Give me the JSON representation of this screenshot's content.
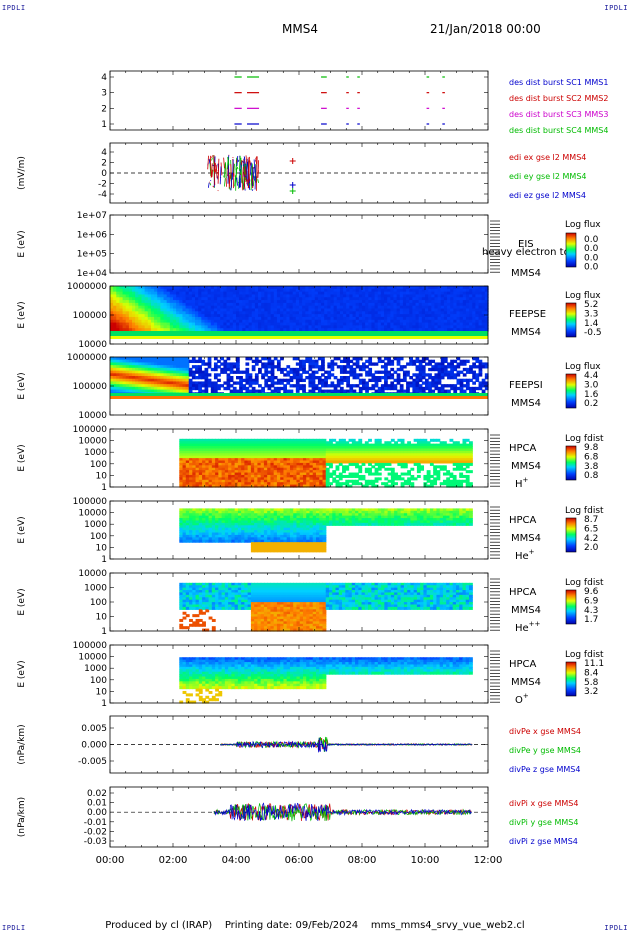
{
  "header": {
    "corner_tl": "IPDLI",
    "corner_tr": "IPDLI",
    "corner_bl": "IPDLI",
    "corner_br": "IPDLI",
    "spacecraft": "MMS4",
    "datetime": "21/Jan/2018 00:00"
  },
  "footer": {
    "produced_by": "Produced by cl (IRAP)",
    "printing_date": "Printing date: 09/Feb/2024",
    "file": "mms_mms4_srvy_vue_web2.cl"
  },
  "x_axis": {
    "ticks": [
      "00:00",
      "02:00",
      "04:00",
      "06:00",
      "08:00",
      "10:00",
      "12:00"
    ],
    "xlim": [
      0,
      12
    ]
  },
  "colors": {
    "mms1": "#0000cc",
    "mms2": "#cc0000",
    "mms3": "#cc00cc",
    "mms4": "#00bb00",
    "x": "#cc0000",
    "y": "#00bb00",
    "z": "#0000cc"
  },
  "panels": {
    "burst": {
      "yticks": [
        "4",
        "3",
        "2",
        "1"
      ],
      "legend": [
        "des dist burst SC1 MMS1",
        "des dist burst SC2 MMS2",
        "des dist burst SC3 MMS3",
        "des dist burst SC4 MMS4"
      ],
      "segments": {
        "sc1": [
          [
            3.95,
            4.15
          ],
          [
            4.35,
            4.7
          ],
          [
            6.7,
            6.85
          ],
          [
            7.5,
            7.55
          ],
          [
            7.85,
            7.9
          ],
          [
            10.05,
            10.1
          ],
          [
            10.55,
            10.6
          ]
        ],
        "sc2": [
          [
            3.95,
            4.15
          ],
          [
            4.35,
            4.7
          ],
          [
            6.7,
            6.85
          ],
          [
            7.5,
            7.55
          ],
          [
            7.85,
            7.9
          ],
          [
            10.05,
            10.1
          ],
          [
            10.55,
            10.6
          ]
        ],
        "sc3": [
          [
            3.95,
            4.15
          ],
          [
            4.35,
            4.7
          ],
          [
            6.7,
            6.85
          ],
          [
            7.5,
            7.55
          ],
          [
            7.85,
            7.9
          ],
          [
            10.05,
            10.1
          ],
          [
            10.55,
            10.6
          ]
        ],
        "sc4": [
          [
            3.95,
            4.15
          ],
          [
            4.35,
            4.7
          ],
          [
            6.7,
            6.85
          ],
          [
            7.5,
            7.55
          ],
          [
            7.85,
            7.9
          ],
          [
            10.05,
            10.1
          ],
          [
            10.55,
            10.6
          ]
        ]
      }
    },
    "edi": {
      "ylabel": "(mV/m)",
      "yticks": [
        "4",
        "2",
        "0",
        "-2",
        "-4"
      ],
      "ylim": [
        -5,
        5
      ],
      "legend": [
        "edi ex gse l2 MMS4",
        "edi ey gse l2 MMS4",
        "edi ez gse l2 MMS4"
      ]
    },
    "eis": {
      "ylabel": "E (eV)",
      "yticks": [
        "1e+07",
        "1e+06",
        "1e+05",
        "1e+04"
      ],
      "name": "EIS",
      "name2": "MMS4",
      "overlay": "heavy electron to",
      "cbar_title": "Log flux",
      "cbar_ticks": [
        "0.0",
        "0.0",
        "0.0",
        "0.0"
      ]
    },
    "feeps_e": {
      "ylabel": "E (eV)",
      "yticks": [
        "1000000",
        "100000",
        "10000"
      ],
      "name": "FEEPSE",
      "name2": "MMS4",
      "cbar_title": "Log flux",
      "cbar_ticks": [
        "5.2",
        "3.3",
        "1.4",
        "-0.5"
      ]
    },
    "feeps_i": {
      "ylabel": "E (eV)",
      "yticks": [
        "1000000",
        "100000",
        "10000"
      ],
      "name": "FEEPSI",
      "name2": "MMS4",
      "cbar_title": "Log flux",
      "cbar_ticks": [
        "4.4",
        "3.0",
        "1.6",
        "0.2"
      ]
    },
    "hpca_h": {
      "ylabel": "E (eV)",
      "yticks": [
        "100000",
        "10000",
        "1000",
        "100",
        "10",
        "1"
      ],
      "name": "HPCA",
      "name2": "MMS4",
      "species": "H",
      "species_sup": "+",
      "cbar_title": "Log fdist",
      "cbar_ticks": [
        "9.8",
        "6.8",
        "3.8",
        "0.8"
      ]
    },
    "hpca_he": {
      "ylabel": "E (eV)",
      "yticks": [
        "100000",
        "10000",
        "1000",
        "100",
        "10",
        "1"
      ],
      "name": "HPCA",
      "name2": "MMS4",
      "species": "He",
      "species_sup": "+",
      "cbar_title": "Log fdist",
      "cbar_ticks": [
        "8.7",
        "6.5",
        "4.2",
        "2.0"
      ]
    },
    "hpca_hepp": {
      "ylabel": "E (eV)",
      "yticks": [
        "10000",
        "1000",
        "100",
        "10",
        "1"
      ],
      "name": "HPCA",
      "name2": "MMS4",
      "species": "He",
      "species_sup": "++",
      "cbar_title": "Log fdist",
      "cbar_ticks": [
        "9.6",
        "6.9",
        "4.3",
        "1.7"
      ]
    },
    "hpca_o": {
      "ylabel": "E (eV)",
      "yticks": [
        "100000",
        "10000",
        "1000",
        "100",
        "10",
        "1"
      ],
      "name": "HPCA",
      "name2": "MMS4",
      "species": "O",
      "species_sup": "+",
      "cbar_title": "Log fdist",
      "cbar_ticks": [
        "11.1",
        "8.4",
        "5.8",
        "3.2"
      ]
    },
    "divpe": {
      "ylabel": "(nPa/km)",
      "yticks": [
        "0.005",
        "0.000",
        "-0.005"
      ],
      "ylim": [
        -0.01,
        0.01
      ],
      "legend": [
        "divPe x gse MMS4",
        "divPe y gse MMS4",
        "divPe z gse MMS4"
      ]
    },
    "divpi": {
      "ylabel": "(nPa/km)",
      "yticks": [
        "0.02",
        "0.01",
        "0.00",
        "-0.01",
        "-0.02",
        "-0.03"
      ],
      "ylim": [
        -0.033,
        0.025
      ],
      "legend": [
        "divPi x gse MMS4",
        "divPi y gse MMS4",
        "divPi z gse MMS4"
      ]
    }
  },
  "chart_data": [
    {
      "type": "line",
      "title": "des dist burst",
      "x": [
        3.95,
        4.15,
        4.35,
        4.7,
        6.7,
        6.85
      ],
      "series": [
        {
          "name": "des dist burst SC1 MMS1",
          "values": [
            1,
            1,
            1,
            1,
            1,
            1
          ]
        },
        {
          "name": "des dist burst SC2 MMS2",
          "values": [
            3,
            3,
            3,
            3,
            3,
            3
          ]
        },
        {
          "name": "des dist burst SC3 MMS3",
          "values": [
            2,
            2,
            2,
            2,
            2,
            2
          ]
        },
        {
          "name": "des dist burst SC4 MMS4",
          "values": [
            4,
            4,
            4,
            4,
            4,
            4
          ]
        }
      ],
      "xlim": [
        0,
        12
      ],
      "ylim": [
        0.5,
        4.5
      ]
    },
    {
      "type": "line",
      "ylabel": "(mV/m)",
      "xlim": [
        0,
        12
      ],
      "ylim": [
        -5,
        5
      ],
      "series": [
        {
          "name": "edi ex gse l2 MMS4"
        },
        {
          "name": "edi ey gse l2 MMS4"
        },
        {
          "name": "edi ez gse l2 MMS4"
        }
      ]
    },
    {
      "type": "heatmap",
      "ylabel": "E (eV)",
      "legend": "FEEPSE",
      "colorbar": "Log flux",
      "clim": [
        -0.5,
        5.2
      ]
    },
    {
      "type": "heatmap",
      "ylabel": "E (eV)",
      "legend": "FEEPSI",
      "colorbar": "Log flux",
      "clim": [
        0.2,
        4.4
      ]
    },
    {
      "type": "heatmap",
      "ylabel": "E (eV)",
      "legend": "HPCA H+",
      "colorbar": "Log fdist",
      "clim": [
        0.8,
        9.8
      ]
    },
    {
      "type": "heatmap",
      "ylabel": "E (eV)",
      "legend": "HPCA He+",
      "colorbar": "Log fdist",
      "clim": [
        2.0,
        8.7
      ]
    },
    {
      "type": "heatmap",
      "ylabel": "E (eV)",
      "legend": "HPCA He++",
      "colorbar": "Log fdist",
      "clim": [
        1.7,
        9.6
      ]
    },
    {
      "type": "heatmap",
      "ylabel": "E (eV)",
      "legend": "HPCA O+",
      "colorbar": "Log fdist",
      "clim": [
        3.2,
        11.1
      ]
    },
    {
      "type": "line",
      "ylabel": "(nPa/km)",
      "ylim": [
        -0.01,
        0.01
      ],
      "series": [
        {
          "name": "divPe x gse MMS4"
        },
        {
          "name": "divPe y gse MMS4"
        },
        {
          "name": "divPe z gse MMS4"
        }
      ]
    },
    {
      "type": "line",
      "ylabel": "(nPa/km)",
      "ylim": [
        -0.033,
        0.025
      ],
      "series": [
        {
          "name": "divPi x gse MMS4"
        },
        {
          "name": "divPi y gse MMS4"
        },
        {
          "name": "divPi z gse MMS4"
        }
      ]
    }
  ]
}
